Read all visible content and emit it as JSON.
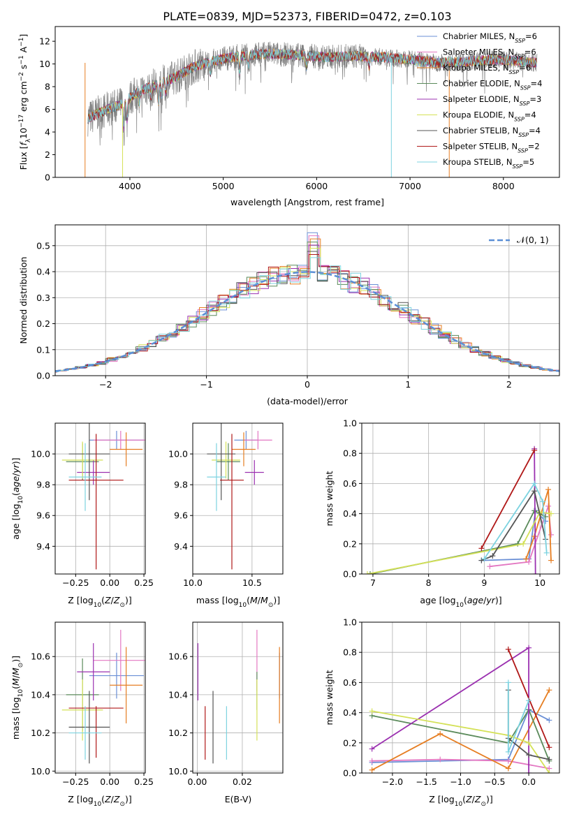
{
  "title": "PLATE=0839, MJD=52373, FIBERID=0472, z=0.103",
  "colors": {
    "Chabrier MILES": "#6a8fd6",
    "Salpeter MILES": "#e377c2",
    "Kroupa MILES": "#e67e22",
    "Chabrier ELODIE": "#5a8a5a",
    "Salpeter ELODIE": "#9b30b0",
    "Kroupa ELODIE": "#d4e157",
    "Chabrier STELIB": "#555555",
    "Salpeter STELIB": "#b01818",
    "Kroupa STELIB": "#7dd3e0",
    "normal": "#5b8fd6"
  },
  "chart_data": [
    {
      "id": "spectrum",
      "type": "line",
      "xlabel": "wavelength [Angstrom, rest frame]",
      "ylabel": "Flux [f_λ10^-17 erg cm^-2 s^-1 A^-1]",
      "xlim": [
        3200,
        8600
      ],
      "ylim": [
        0,
        13.3
      ],
      "xticks": [
        4000,
        5000,
        6000,
        7000,
        8000
      ],
      "yticks": [
        0,
        2,
        4,
        6,
        8,
        10,
        12
      ],
      "grid": false,
      "legend_position": "right",
      "legend": [
        {
          "label": "Chabrier MILES, N",
          "sub": "SSP",
          "suffix": "=6"
        },
        {
          "label": "Salpeter MILES, N",
          "sub": "SSP",
          "suffix": "=6"
        },
        {
          "label": "Kroupa MILES, N",
          "sub": "SSP",
          "suffix": "=6"
        },
        {
          "label": "Chabrier ELODIE, N",
          "sub": "SSP",
          "suffix": "=4"
        },
        {
          "label": "Salpeter ELODIE, N",
          "sub": "SSP",
          "suffix": "=3"
        },
        {
          "label": "Kroupa ELODIE, N",
          "sub": "SSP",
          "suffix": "=4"
        },
        {
          "label": "Chabrier STELIB, N",
          "sub": "SSP",
          "suffix": "=4"
        },
        {
          "label": "Salpeter STELIB, N",
          "sub": "SSP",
          "suffix": "=2"
        },
        {
          "label": "Kroupa STELIB, N",
          "sub": "SSP",
          "suffix": "=5"
        }
      ],
      "wl_range": [
        3550,
        8360
      ],
      "continuum": [
        [
          3550,
          5.2
        ],
        [
          3700,
          5.8
        ],
        [
          3900,
          6.4
        ],
        [
          4100,
          7.6
        ],
        [
          4300,
          8.2
        ],
        [
          4500,
          8.9
        ],
        [
          4700,
          9.8
        ],
        [
          4900,
          10.3
        ],
        [
          5100,
          10.6
        ],
        [
          5300,
          10.8
        ],
        [
          5500,
          10.9
        ],
        [
          5800,
          10.8
        ],
        [
          6100,
          10.6
        ],
        [
          6400,
          10.7
        ],
        [
          6700,
          10.6
        ],
        [
          7000,
          10.4
        ],
        [
          7300,
          10.1
        ],
        [
          7600,
          10.2
        ],
        [
          7900,
          10.4
        ],
        [
          8100,
          10.3
        ],
        [
          8360,
          10.1
        ]
      ],
      "absorption_lines": [
        [
          3934,
          2.5
        ],
        [
          3969,
          2.0
        ],
        [
          4102,
          1.2
        ],
        [
          4227,
          1.0
        ],
        [
          4305,
          1.8
        ],
        [
          4340,
          1.2
        ],
        [
          4384,
          1.0
        ],
        [
          4861,
          1.2
        ],
        [
          5175,
          1.5
        ],
        [
          5270,
          1.0
        ],
        [
          5890,
          1.2
        ],
        [
          6563,
          1.0
        ]
      ],
      "gaps": [
        3520,
        3922,
        6800,
        7420
      ]
    },
    {
      "id": "residuals",
      "type": "histogram",
      "xlabel": "(data-model)/error",
      "ylabel": "Normed distribution",
      "xlim": [
        -2.5,
        2.5
      ],
      "ylim": [
        0,
        0.58
      ],
      "xticks": [
        -2,
        -1,
        0,
        1,
        2
      ],
      "yticks": [
        0.0,
        0.1,
        0.2,
        0.3,
        0.4,
        0.5
      ],
      "grid": true,
      "legend_position": "upper right",
      "legend_label": "N(0,1)",
      "bin_width": 0.1,
      "spike_at_zero": 0.55
    },
    {
      "id": "age_vs_Z",
      "type": "errorbar",
      "xlabel": "Z [log10(Z/Z☉)]",
      "ylabel": "age  [log10(age/yr)]",
      "xlim": [
        -0.4,
        0.26
      ],
      "ylim": [
        9.22,
        10.2
      ],
      "xticks": [
        -0.25,
        0.0,
        0.25
      ],
      "yticks": [
        9.4,
        9.6,
        9.8,
        10.0
      ],
      "grid": true,
      "points": [
        {
          "model": "Chabrier MILES",
          "x": 0.05,
          "xerr": [
            0.2,
            0.2
          ],
          "y": 10.09,
          "yerr": [
            0.06,
            0.06
          ]
        },
        {
          "model": "Salpeter MILES",
          "x": 0.08,
          "xerr": [
            0.2,
            0.2
          ],
          "y": 10.09,
          "yerr": [
            0.06,
            0.06
          ]
        },
        {
          "model": "Kroupa MILES",
          "x": 0.12,
          "xerr": [
            0.12,
            0.12
          ],
          "y": 10.03,
          "yerr": [
            0.11,
            0.11
          ]
        },
        {
          "model": "Chabrier ELODIE",
          "x": -0.2,
          "xerr": [
            0.12,
            0.12
          ],
          "y": 9.95,
          "yerr": [
            0.12,
            0.12
          ]
        },
        {
          "model": "Salpeter ELODIE",
          "x": -0.12,
          "xerr": [
            0.12,
            0.12
          ],
          "y": 9.88,
          "yerr": [
            0.08,
            0.08
          ]
        },
        {
          "model": "Kroupa ELODIE",
          "x": -0.2,
          "xerr": [
            0.15,
            0.15
          ],
          "y": 9.96,
          "yerr": [
            0.12,
            0.12
          ]
        },
        {
          "model": "Chabrier STELIB",
          "x": -0.15,
          "xerr": [
            0.15,
            0.15
          ],
          "y": 10.0,
          "yerr": [
            0.3,
            0.3
          ]
        },
        {
          "model": "Salpeter STELIB",
          "x": -0.1,
          "xerr": [
            0.2,
            0.2
          ],
          "y": 9.83,
          "yerr": [
            0.58,
            0.3
          ]
        },
        {
          "model": "Kroupa STELIB",
          "x": -0.18,
          "xerr": [
            0.12,
            0.12
          ],
          "y": 9.85,
          "yerr": [
            0.22,
            0.22
          ]
        }
      ]
    },
    {
      "id": "age_vs_mass",
      "type": "errorbar",
      "xlabel": "mass [log10(M/M☉)]",
      "ylabel": "",
      "xlim": [
        10.0,
        10.76
      ],
      "ylim": [
        9.22,
        10.2
      ],
      "xticks": [
        10.0,
        10.5
      ],
      "yticks": [
        9.4,
        9.6,
        9.8,
        10.0
      ],
      "grid": true,
      "points": [
        {
          "model": "Chabrier MILES",
          "x": 10.45,
          "xerr": [
            0.1,
            0.1
          ],
          "y": 10.09,
          "yerr": [
            0.06,
            0.06
          ]
        },
        {
          "model": "Salpeter MILES",
          "x": 10.55,
          "xerr": [
            0.12,
            0.12
          ],
          "y": 10.09,
          "yerr": [
            0.06,
            0.06
          ]
        },
        {
          "model": "Kroupa MILES",
          "x": 10.43,
          "xerr": [
            0.1,
            0.1
          ],
          "y": 10.03,
          "yerr": [
            0.11,
            0.11
          ]
        },
        {
          "model": "Chabrier ELODIE",
          "x": 10.3,
          "xerr": [
            0.1,
            0.1
          ],
          "y": 9.95,
          "yerr": [
            0.12,
            0.12
          ]
        },
        {
          "model": "Salpeter ELODIE",
          "x": 10.52,
          "xerr": [
            0.08,
            0.08
          ],
          "y": 9.88,
          "yerr": [
            0.08,
            0.08
          ]
        },
        {
          "model": "Kroupa ELODIE",
          "x": 10.28,
          "xerr": [
            0.12,
            0.12
          ],
          "y": 9.96,
          "yerr": [
            0.12,
            0.12
          ]
        },
        {
          "model": "Chabrier STELIB",
          "x": 10.24,
          "xerr": [
            0.12,
            0.12
          ],
          "y": 10.0,
          "yerr": [
            0.3,
            0.3
          ]
        },
        {
          "model": "Salpeter STELIB",
          "x": 10.33,
          "xerr": [
            0.1,
            0.1
          ],
          "y": 9.83,
          "yerr": [
            0.58,
            0.3
          ]
        },
        {
          "model": "Kroupa STELIB",
          "x": 10.2,
          "xerr": [
            0.08,
            0.08
          ],
          "y": 9.85,
          "yerr": [
            0.22,
            0.22
          ]
        }
      ]
    },
    {
      "id": "mass_weight_vs_age",
      "type": "line",
      "xlabel": "age  [log10(age/yr)]",
      "ylabel": "mass weight",
      "xlim": [
        6.8,
        10.35
      ],
      "ylim": [
        0,
        1.0
      ],
      "xticks": [
        7,
        8,
        9,
        10
      ],
      "yticks": [
        0.0,
        0.2,
        0.4,
        0.6,
        0.8,
        1.0
      ],
      "grid": true,
      "series": [
        {
          "model": "Chabrier MILES",
          "x": [
            8.95,
            9.8,
            9.92,
            10.1
          ],
          "y": [
            0.09,
            0.1,
            0.42,
            0.35
          ]
        },
        {
          "model": "Salpeter MILES",
          "x": [
            9.1,
            9.8,
            10.15,
            10.2
          ],
          "y": [
            0.05,
            0.08,
            0.45,
            0.26
          ]
        },
        {
          "model": "Kroupa MILES",
          "x": [
            9.75,
            9.9,
            10.15,
            10.2
          ],
          "y": [
            0.1,
            0.25,
            0.56,
            0.09
          ]
        },
        {
          "model": "Chabrier ELODIE",
          "x": [
            6.95,
            9.6,
            9.9,
            10.1
          ],
          "y": [
            0.0,
            0.2,
            0.42,
            0.38
          ]
        },
        {
          "model": "Salpeter ELODIE",
          "x": [
            9.9,
            9.92
          ],
          "y": [
            0.83,
            0.0
          ]
        },
        {
          "model": "Kroupa ELODIE",
          "x": [
            6.9,
            9.7,
            10.0,
            10.2
          ],
          "y": [
            0.0,
            0.2,
            0.41,
            0.4
          ]
        },
        {
          "model": "Chabrier STELIB",
          "x": [
            8.95,
            9.15,
            9.9,
            10.1
          ],
          "y": [
            0.09,
            0.12,
            0.55,
            0.23
          ]
        },
        {
          "model": "Salpeter STELIB",
          "x": [
            8.95,
            9.9
          ],
          "y": [
            0.17,
            0.82
          ]
        },
        {
          "model": "Kroupa STELIB",
          "x": [
            9.0,
            9.9,
            10.05,
            10.12
          ],
          "y": [
            0.1,
            0.6,
            0.48,
            0.14
          ]
        }
      ]
    },
    {
      "id": "mass_vs_Z",
      "type": "errorbar",
      "xlabel": "Z [log10(Z/Z☉)]",
      "ylabel": "mass [log10(M/M☉)]",
      "xlim": [
        -0.4,
        0.26
      ],
      "ylim": [
        9.99,
        10.78
      ],
      "xticks": [
        -0.25,
        0.0,
        0.25
      ],
      "yticks": [
        10.0,
        10.2,
        10.4,
        10.6
      ],
      "grid": true,
      "points": [
        {
          "model": "Chabrier MILES",
          "x": 0.05,
          "xerr": [
            0.2,
            0.2
          ],
          "y": 10.5,
          "yerr": [
            0.12,
            0.12
          ]
        },
        {
          "model": "Salpeter MILES",
          "x": 0.08,
          "xerr": [
            0.2,
            0.2
          ],
          "y": 10.58,
          "yerr": [
            0.16,
            0.16
          ]
        },
        {
          "model": "Kroupa MILES",
          "x": 0.12,
          "xerr": [
            0.12,
            0.12
          ],
          "y": 10.45,
          "yerr": [
            0.2,
            0.2
          ]
        },
        {
          "model": "Chabrier ELODIE",
          "x": -0.2,
          "xerr": [
            0.12,
            0.12
          ],
          "y": 10.4,
          "yerr": [
            0.19,
            0.19
          ]
        },
        {
          "model": "Salpeter ELODIE",
          "x": -0.12,
          "xerr": [
            0.12,
            0.12
          ],
          "y": 10.52,
          "yerr": [
            0.15,
            0.15
          ]
        },
        {
          "model": "Kroupa ELODIE",
          "x": -0.2,
          "xerr": [
            0.15,
            0.15
          ],
          "y": 10.32,
          "yerr": [
            0.16,
            0.16
          ]
        },
        {
          "model": "Chabrier STELIB",
          "x": -0.15,
          "xerr": [
            0.15,
            0.15
          ],
          "y": 10.23,
          "yerr": [
            0.19,
            0.19
          ]
        },
        {
          "model": "Salpeter STELIB",
          "x": -0.1,
          "xerr": [
            0.2,
            0.2
          ],
          "y": 10.33,
          "yerr": [
            0.26,
            0.01
          ]
        },
        {
          "model": "Kroupa STELIB",
          "x": -0.18,
          "xerr": [
            0.12,
            0.12
          ],
          "y": 10.2,
          "yerr": [
            0.14,
            0.14
          ]
        }
      ]
    },
    {
      "id": "mass_vs_ebv",
      "type": "errorbar",
      "xlabel": "E(B-V)",
      "ylabel": "",
      "xlim": [
        -0.002,
        0.038
      ],
      "ylim": [
        9.99,
        10.78
      ],
      "xticks": [
        0.0,
        0.02
      ],
      "yticks": [
        10.0,
        10.2,
        10.4,
        10.6
      ],
      "grid": true,
      "points": [
        {
          "model": "Chabrier MILES",
          "x": 0.0365,
          "y": 10.5,
          "yerr": [
            0.12,
            0.12
          ]
        },
        {
          "model": "Salpeter MILES",
          "x": 0.0265,
          "y": 10.58,
          "yerr": [
            0.16,
            0.16
          ]
        },
        {
          "model": "Kroupa MILES",
          "x": 0.0365,
          "y": 10.45,
          "yerr": [
            0.2,
            0.2
          ]
        },
        {
          "model": "Chabrier ELODIE",
          "x": 0.0265,
          "y": 10.42,
          "yerr": [
            0.1,
            0.1
          ]
        },
        {
          "model": "Salpeter ELODIE",
          "x": 0.0003,
          "y": 10.52,
          "yerr": [
            0.15,
            0.15
          ]
        },
        {
          "model": "Kroupa ELODIE",
          "x": 0.0265,
          "y": 10.32,
          "yerr": [
            0.16,
            0.16
          ]
        },
        {
          "model": "Chabrier STELIB",
          "x": 0.007,
          "y": 10.23,
          "yerr": [
            0.19,
            0.19
          ]
        },
        {
          "model": "Salpeter STELIB",
          "x": 0.0035,
          "y": 10.2,
          "yerr": [
            0.14,
            0.14
          ]
        },
        {
          "model": "Kroupa STELIB",
          "x": 0.013,
          "y": 10.2,
          "yerr": [
            0.14,
            0.14
          ]
        }
      ]
    },
    {
      "id": "mass_weight_vs_Z",
      "type": "line",
      "xlabel": "Z [log10(Z/Z☉)]",
      "ylabel": "mass weight",
      "xlim": [
        -2.45,
        0.45
      ],
      "ylim": [
        0,
        1.0
      ],
      "xticks": [
        -2.0,
        -1.5,
        -1.0,
        -0.5,
        0.0
      ],
      "yticks": [
        0.0,
        0.2,
        0.4,
        0.6,
        0.8,
        1.0
      ],
      "grid": true,
      "series": [
        {
          "model": "Chabrier MILES",
          "x": [
            -2.3,
            -0.3,
            0.0,
            0.3
          ],
          "y": [
            0.07,
            0.09,
            0.42,
            0.35
          ]
        },
        {
          "model": "Salpeter MILES",
          "x": [
            -2.3,
            -1.3,
            -0.3,
            0.3
          ],
          "y": [
            0.08,
            0.09,
            0.08,
            0.03
          ]
        },
        {
          "model": "Kroupa MILES",
          "x": [
            -2.3,
            -1.3,
            -0.3,
            0.3
          ],
          "y": [
            0.02,
            0.26,
            0.03,
            0.55
          ]
        },
        {
          "model": "Chabrier ELODIE",
          "x": [
            -2.3,
            -0.3,
            0.0,
            0.3
          ],
          "y": [
            0.38,
            0.2,
            0.42,
            0.08
          ]
        },
        {
          "model": "Salpeter ELODIE",
          "x": [
            -2.3,
            0.0,
            0.0
          ],
          "y": [
            0.16,
            0.83,
            0.0
          ]
        },
        {
          "model": "Kroupa ELODIE",
          "x": [
            -2.3,
            -0.3,
            0.0,
            0.3
          ],
          "y": [
            0.41,
            0.25,
            0.2,
            0.0
          ]
        },
        {
          "model": "Chabrier STELIB",
          "x": [
            -0.3,
            -0.3,
            0.0,
            0.3
          ],
          "y": [
            0.55,
            0.23,
            0.12,
            0.09
          ]
        },
        {
          "model": "Salpeter STELIB",
          "x": [
            -0.3,
            0.3
          ],
          "y": [
            0.82,
            0.17
          ]
        },
        {
          "model": "Kroupa STELIB",
          "x": [
            -0.3,
            -0.3,
            0.0
          ],
          "y": [
            0.6,
            0.14,
            0.48
          ]
        }
      ]
    }
  ]
}
